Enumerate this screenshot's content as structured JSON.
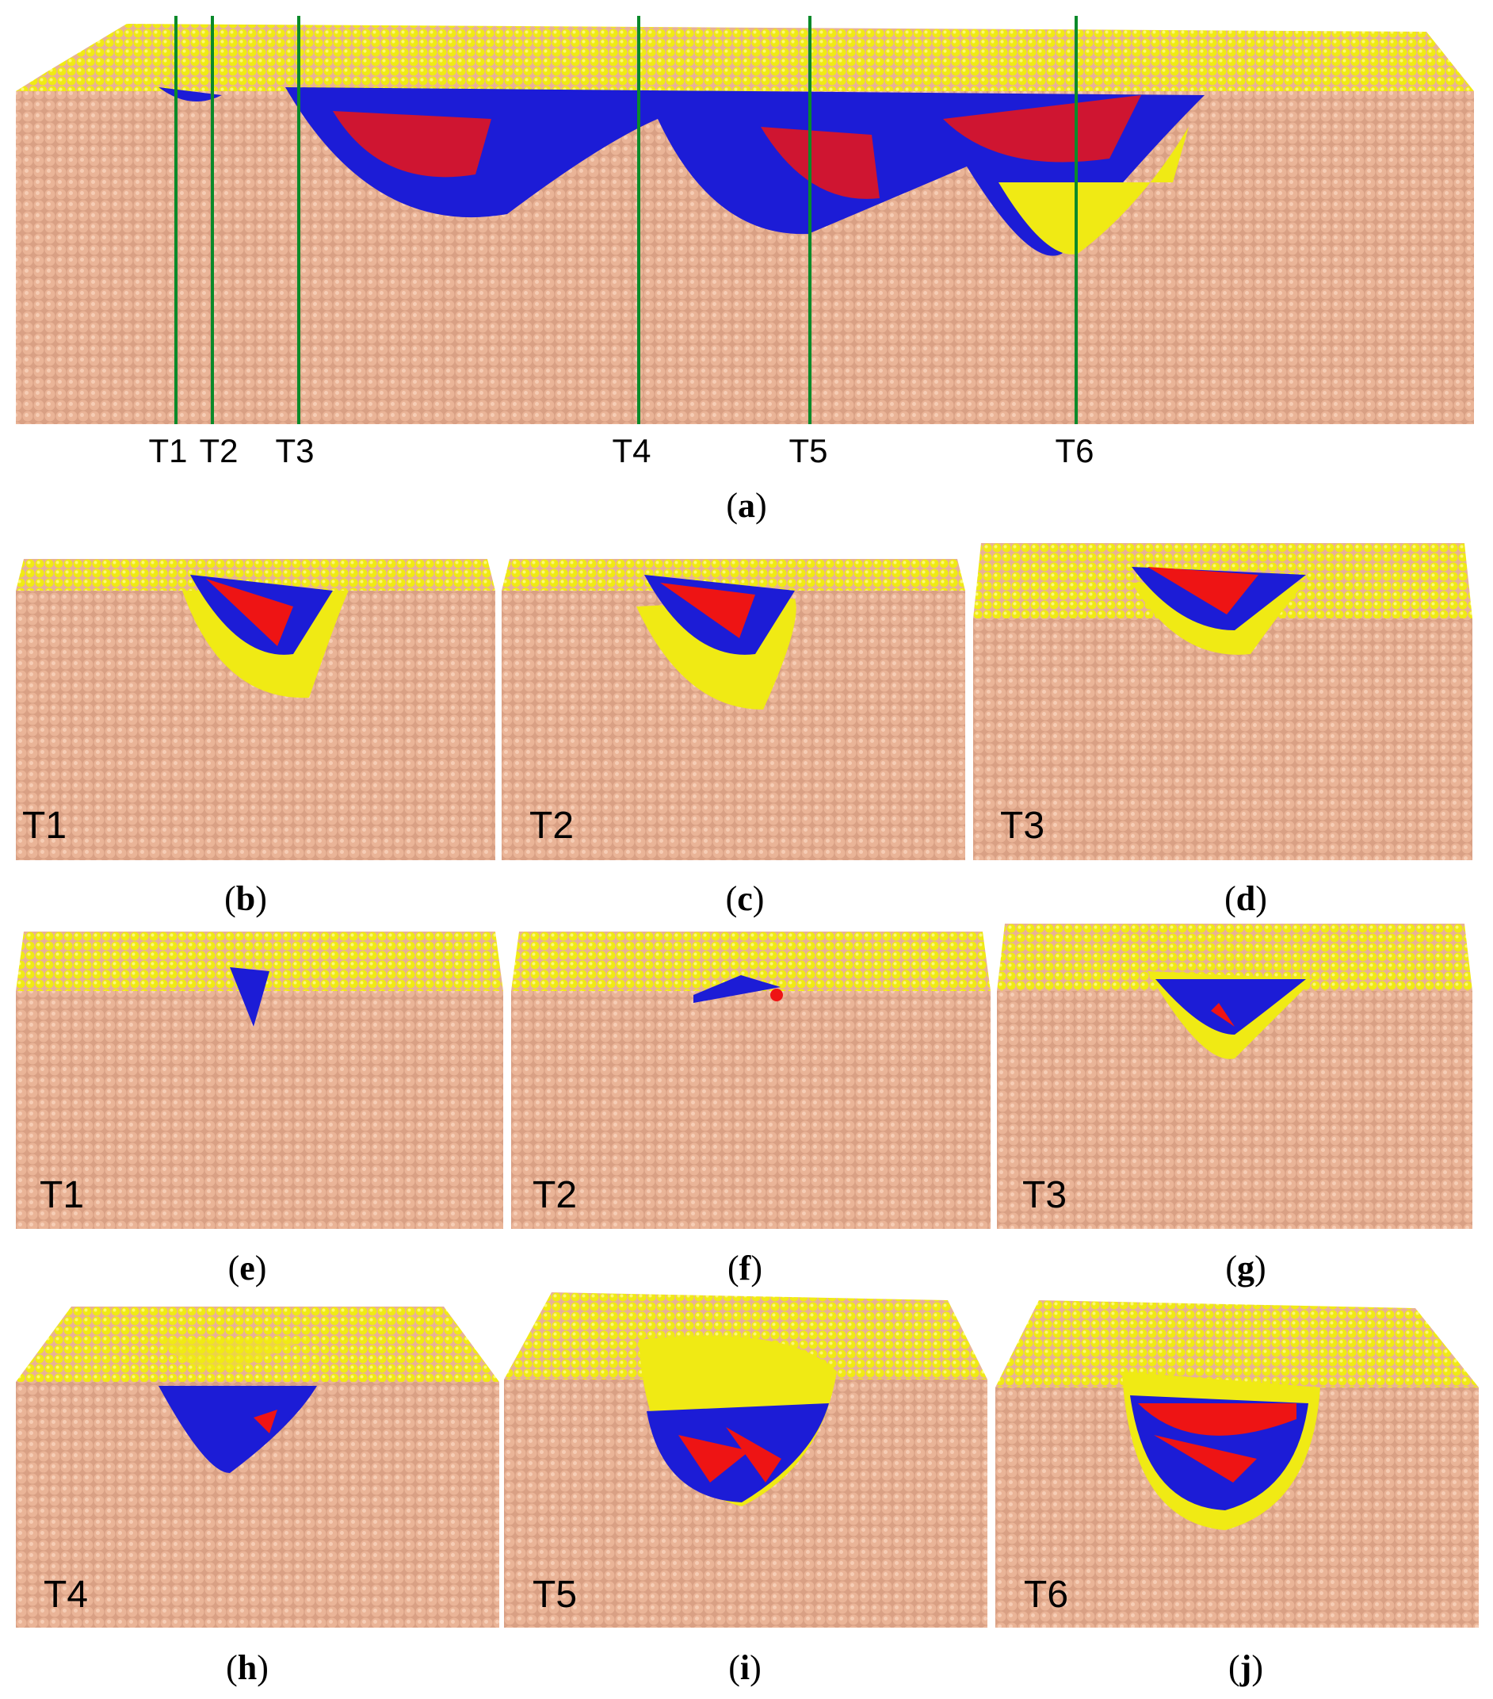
{
  "figure": {
    "colors": {
      "substrate": "#e3a98b",
      "surface": "#f2ec10",
      "disordered_blue": "#1c1cd6",
      "disordered_red": "#ee1414",
      "pink_atom": "#f0b8b0",
      "section_line": "#0a8a2a"
    },
    "panel_a": {
      "section_lines": [
        "T1",
        "T2",
        "T3",
        "T4",
        "T5",
        "T6"
      ],
      "caption_letter": "a"
    },
    "panels": [
      {
        "id": "b",
        "inset": "T1"
      },
      {
        "id": "c",
        "inset": "T2"
      },
      {
        "id": "d",
        "inset": "T3"
      },
      {
        "id": "e",
        "inset": "T1"
      },
      {
        "id": "f",
        "inset": "T2"
      },
      {
        "id": "g",
        "inset": "T3"
      },
      {
        "id": "h",
        "inset": "T4"
      },
      {
        "id": "i",
        "inset": "T5"
      },
      {
        "id": "j",
        "inset": "T6"
      }
    ]
  }
}
